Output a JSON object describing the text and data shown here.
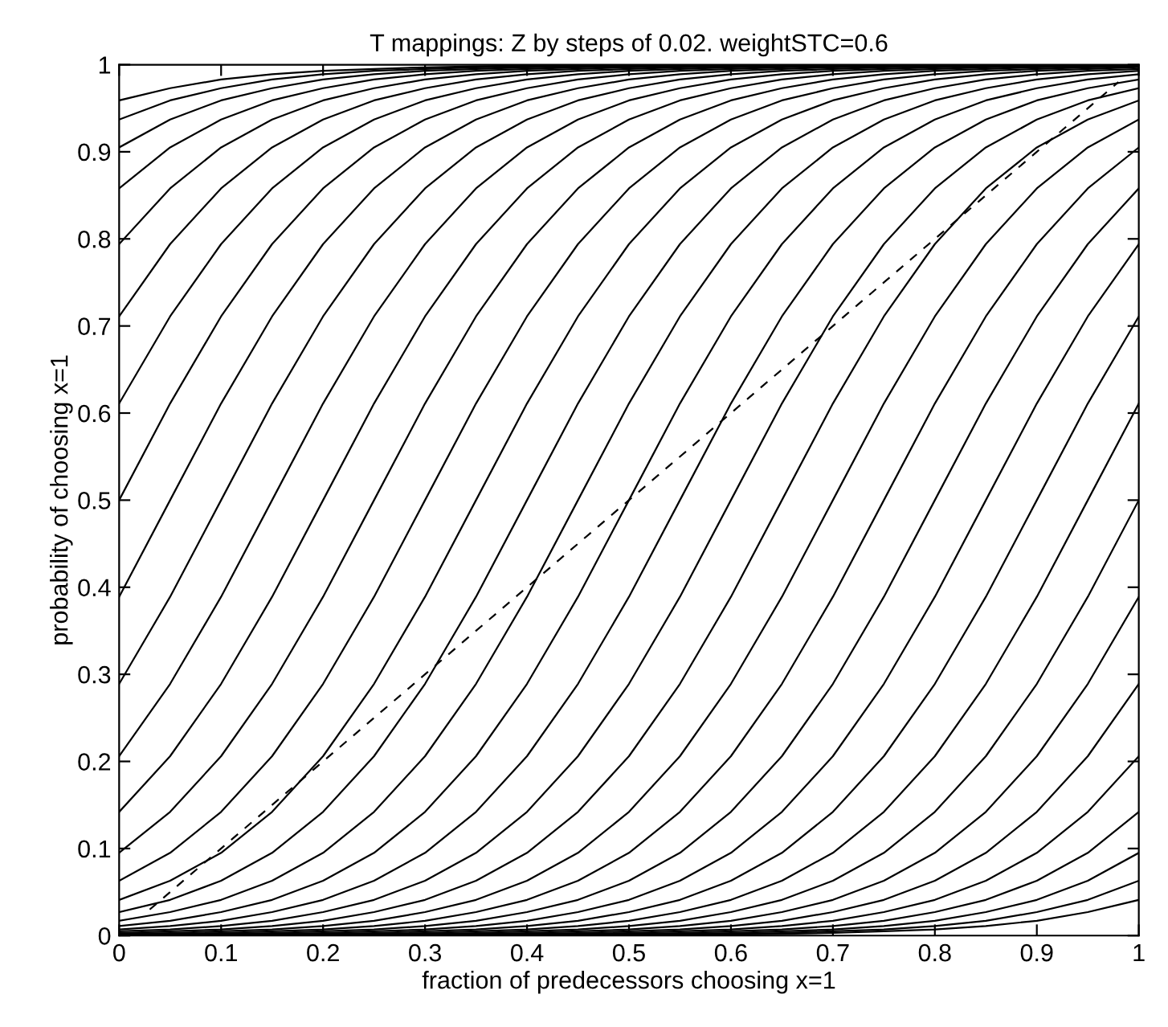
{
  "chart_data": {
    "type": "line",
    "title": "T mappings: Z by steps of 0.02. weightSTC=0.6",
    "xlabel": "fraction of predecessors choosing x=1",
    "ylabel": "probability of choosing x=1",
    "x": [
      0,
      0.05,
      0.1,
      0.15,
      0.2,
      0.25,
      0.3,
      0.35,
      0.4,
      0.45,
      0.5,
      0.55,
      0.6,
      0.65,
      0.7,
      0.75,
      0.8,
      0.85,
      0.9,
      0.95,
      1
    ],
    "xlim": [
      0,
      1
    ],
    "ylim": [
      0,
      1
    ],
    "xticks": [
      0,
      0.1,
      0.2,
      0.3,
      0.4,
      0.5,
      0.6,
      0.7,
      0.8,
      0.9,
      1
    ],
    "yticks": [
      0,
      0.1,
      0.2,
      0.3,
      0.4,
      0.5,
      0.6,
      0.7,
      0.8,
      0.9,
      1
    ],
    "grid": false,
    "marker": "none",
    "line_style": "solid",
    "series": [
      {
        "color": "#000000",
        "values": [
          0.959,
          0.973,
          0.983,
          0.989,
          0.993,
          0.995,
          0.997,
          0.998,
          0.999,
          1,
          1,
          1,
          1,
          1,
          1,
          1,
          1,
          1,
          1,
          1,
          1
        ]
      },
      {
        "color": "#000000",
        "values": [
          0.937,
          0.959,
          0.973,
          0.983,
          0.989,
          0.993,
          0.995,
          0.997,
          0.998,
          0.999,
          1,
          1,
          1,
          1,
          1,
          1,
          1,
          1,
          1,
          1,
          1
        ]
      },
      {
        "color": "#000000",
        "values": [
          0.905,
          0.937,
          0.959,
          0.973,
          0.983,
          0.989,
          0.993,
          0.995,
          0.997,
          0.998,
          0.999,
          1,
          1,
          1,
          1,
          1,
          1,
          1,
          1,
          1,
          1
        ]
      },
      {
        "color": "#000000",
        "values": [
          0.858,
          0.905,
          0.937,
          0.959,
          0.973,
          0.983,
          0.989,
          0.993,
          0.995,
          0.997,
          0.998,
          0.999,
          1,
          1,
          1,
          1,
          1,
          1,
          1,
          1,
          1
        ]
      },
      {
        "color": "#000000",
        "values": [
          0.794,
          0.858,
          0.905,
          0.937,
          0.959,
          0.973,
          0.983,
          0.989,
          0.993,
          0.995,
          0.997,
          0.998,
          0.999,
          1,
          1,
          1,
          1,
          1,
          1,
          1,
          1
        ]
      },
      {
        "color": "#000000",
        "values": [
          0.711,
          0.794,
          0.858,
          0.905,
          0.937,
          0.959,
          0.973,
          0.983,
          0.989,
          0.993,
          0.995,
          0.997,
          0.998,
          0.999,
          1,
          1,
          1,
          1,
          1,
          1,
          1
        ]
      },
      {
        "color": "#000000",
        "values": [
          0.611,
          0.711,
          0.794,
          0.858,
          0.905,
          0.937,
          0.959,
          0.973,
          0.983,
          0.989,
          0.993,
          0.995,
          0.997,
          0.998,
          0.999,
          1,
          1,
          1,
          1,
          1,
          1
        ]
      },
      {
        "color": "#000000",
        "values": [
          0.5,
          0.611,
          0.711,
          0.794,
          0.858,
          0.905,
          0.937,
          0.959,
          0.973,
          0.983,
          0.989,
          0.993,
          0.995,
          0.997,
          0.998,
          0.999,
          1,
          1,
          1,
          1,
          1
        ]
      },
      {
        "color": "#000000",
        "values": [
          0.389,
          0.5,
          0.611,
          0.711,
          0.794,
          0.858,
          0.905,
          0.937,
          0.959,
          0.973,
          0.983,
          0.989,
          0.993,
          0.995,
          0.997,
          0.998,
          0.999,
          1,
          1,
          1,
          1
        ]
      },
      {
        "color": "#000000",
        "values": [
          0.289,
          0.389,
          0.5,
          0.611,
          0.711,
          0.794,
          0.858,
          0.905,
          0.937,
          0.959,
          0.973,
          0.983,
          0.989,
          0.993,
          0.995,
          0.997,
          0.998,
          0.999,
          1,
          1,
          1
        ]
      },
      {
        "color": "#000000",
        "values": [
          0.206,
          0.289,
          0.389,
          0.5,
          0.611,
          0.711,
          0.794,
          0.858,
          0.905,
          0.937,
          0.959,
          0.973,
          0.983,
          0.989,
          0.993,
          0.995,
          0.997,
          0.998,
          0.999,
          1,
          1
        ]
      },
      {
        "color": "#000000",
        "values": [
          0.142,
          0.206,
          0.289,
          0.389,
          0.5,
          0.611,
          0.711,
          0.794,
          0.858,
          0.905,
          0.937,
          0.959,
          0.973,
          0.983,
          0.989,
          0.993,
          0.995,
          0.997,
          0.998,
          0.999,
          1
        ]
      },
      {
        "color": "#000000",
        "values": [
          0.095,
          0.142,
          0.206,
          0.289,
          0.389,
          0.5,
          0.611,
          0.711,
          0.794,
          0.858,
          0.905,
          0.937,
          0.959,
          0.973,
          0.983,
          0.989,
          0.993,
          0.995,
          0.997,
          0.998,
          0.999
        ]
      },
      {
        "color": "#000000",
        "values": [
          0.063,
          0.095,
          0.142,
          0.206,
          0.289,
          0.389,
          0.5,
          0.611,
          0.711,
          0.794,
          0.858,
          0.905,
          0.937,
          0.959,
          0.973,
          0.983,
          0.989,
          0.993,
          0.995,
          0.997,
          0.998
        ]
      },
      {
        "color": "#000000",
        "values": [
          0.041,
          0.063,
          0.095,
          0.142,
          0.206,
          0.289,
          0.389,
          0.5,
          0.611,
          0.711,
          0.794,
          0.858,
          0.905,
          0.937,
          0.959,
          0.973,
          0.983,
          0.989,
          0.993,
          0.995,
          0.997
        ]
      },
      {
        "color": "#000000",
        "values": [
          0.027,
          0.041,
          0.063,
          0.095,
          0.142,
          0.206,
          0.289,
          0.389,
          0.5,
          0.611,
          0.711,
          0.794,
          0.858,
          0.905,
          0.937,
          0.959,
          0.973,
          0.983,
          0.989,
          0.993,
          0.995
        ]
      },
      {
        "color": "#000000",
        "values": [
          0.017,
          0.027,
          0.041,
          0.063,
          0.095,
          0.142,
          0.206,
          0.289,
          0.389,
          0.5,
          0.611,
          0.711,
          0.794,
          0.858,
          0.905,
          0.937,
          0.959,
          0.973,
          0.983,
          0.989,
          0.993
        ]
      },
      {
        "color": "#000000",
        "values": [
          0.011,
          0.017,
          0.027,
          0.041,
          0.063,
          0.095,
          0.142,
          0.206,
          0.289,
          0.389,
          0.5,
          0.611,
          0.711,
          0.794,
          0.858,
          0.905,
          0.937,
          0.959,
          0.973,
          0.983,
          0.989
        ]
      },
      {
        "color": "#000000",
        "values": [
          0.007,
          0.011,
          0.017,
          0.027,
          0.041,
          0.063,
          0.095,
          0.142,
          0.206,
          0.289,
          0.389,
          0.5,
          0.611,
          0.711,
          0.794,
          0.858,
          0.905,
          0.937,
          0.959,
          0.973,
          0.983
        ]
      },
      {
        "color": "#000000",
        "values": [
          0.005,
          0.007,
          0.011,
          0.017,
          0.027,
          0.041,
          0.063,
          0.095,
          0.142,
          0.206,
          0.289,
          0.389,
          0.5,
          0.611,
          0.711,
          0.794,
          0.858,
          0.905,
          0.937,
          0.959,
          0.973
        ]
      },
      {
        "color": "#000000",
        "values": [
          0.003,
          0.005,
          0.007,
          0.011,
          0.017,
          0.027,
          0.041,
          0.063,
          0.095,
          0.142,
          0.206,
          0.289,
          0.389,
          0.5,
          0.611,
          0.711,
          0.794,
          0.858,
          0.905,
          0.937,
          0.959
        ]
      },
      {
        "color": "#000000",
        "values": [
          0.002,
          0.003,
          0.005,
          0.007,
          0.011,
          0.017,
          0.027,
          0.041,
          0.063,
          0.095,
          0.142,
          0.206,
          0.289,
          0.389,
          0.5,
          0.611,
          0.711,
          0.794,
          0.858,
          0.905,
          0.937
        ]
      },
      {
        "color": "#000000",
        "values": [
          0.001,
          0.002,
          0.003,
          0.005,
          0.007,
          0.011,
          0.017,
          0.027,
          0.041,
          0.063,
          0.095,
          0.142,
          0.206,
          0.289,
          0.389,
          0.5,
          0.611,
          0.711,
          0.794,
          0.858,
          0.905
        ]
      },
      {
        "color": "#000000",
        "values": [
          0,
          0.001,
          0.002,
          0.003,
          0.005,
          0.007,
          0.011,
          0.017,
          0.027,
          0.041,
          0.063,
          0.095,
          0.142,
          0.206,
          0.289,
          0.389,
          0.5,
          0.611,
          0.711,
          0.794,
          0.858
        ]
      },
      {
        "color": "#000000",
        "values": [
          0,
          0,
          0.001,
          0.002,
          0.003,
          0.005,
          0.007,
          0.011,
          0.017,
          0.027,
          0.041,
          0.063,
          0.095,
          0.142,
          0.206,
          0.289,
          0.389,
          0.5,
          0.611,
          0.711,
          0.794
        ]
      },
      {
        "color": "#000000",
        "values": [
          0,
          0,
          0,
          0.001,
          0.002,
          0.003,
          0.005,
          0.007,
          0.011,
          0.017,
          0.027,
          0.041,
          0.063,
          0.095,
          0.142,
          0.206,
          0.289,
          0.389,
          0.5,
          0.611,
          0.711
        ]
      },
      {
        "color": "#000000",
        "values": [
          0,
          0,
          0,
          0,
          0.001,
          0.002,
          0.003,
          0.005,
          0.007,
          0.011,
          0.017,
          0.027,
          0.041,
          0.063,
          0.095,
          0.142,
          0.206,
          0.289,
          0.389,
          0.5,
          0.611
        ]
      },
      {
        "color": "#000000",
        "values": [
          0,
          0,
          0,
          0,
          0,
          0.001,
          0.002,
          0.003,
          0.005,
          0.007,
          0.011,
          0.017,
          0.027,
          0.041,
          0.063,
          0.095,
          0.142,
          0.206,
          0.289,
          0.389,
          0.5
        ]
      },
      {
        "color": "#000000",
        "values": [
          0,
          0,
          0,
          0,
          0,
          0,
          0.001,
          0.002,
          0.003,
          0.005,
          0.007,
          0.011,
          0.017,
          0.027,
          0.041,
          0.063,
          0.095,
          0.142,
          0.206,
          0.289,
          0.389
        ]
      },
      {
        "color": "#000000",
        "values": [
          0,
          0,
          0,
          0,
          0,
          0,
          0,
          0.001,
          0.002,
          0.003,
          0.005,
          0.007,
          0.011,
          0.017,
          0.027,
          0.041,
          0.063,
          0.095,
          0.142,
          0.206,
          0.289
        ]
      },
      {
        "color": "#000000",
        "values": [
          0,
          0,
          0,
          0,
          0,
          0,
          0,
          0,
          0.001,
          0.002,
          0.003,
          0.005,
          0.007,
          0.011,
          0.017,
          0.027,
          0.041,
          0.063,
          0.095,
          0.142,
          0.206
        ]
      },
      {
        "color": "#000000",
        "values": [
          0,
          0,
          0,
          0,
          0,
          0,
          0,
          0,
          0,
          0.001,
          0.002,
          0.003,
          0.005,
          0.007,
          0.011,
          0.017,
          0.027,
          0.041,
          0.063,
          0.095,
          0.142
        ]
      },
      {
        "color": "#000000",
        "values": [
          0,
          0,
          0,
          0,
          0,
          0,
          0,
          0,
          0,
          0,
          0.001,
          0.002,
          0.003,
          0.005,
          0.007,
          0.011,
          0.017,
          0.027,
          0.041,
          0.063,
          0.095
        ]
      },
      {
        "color": "#000000",
        "values": [
          0,
          0,
          0,
          0,
          0,
          0,
          0,
          0,
          0,
          0,
          0,
          0.001,
          0.002,
          0.003,
          0.005,
          0.007,
          0.011,
          0.017,
          0.027,
          0.041,
          0.063
        ]
      },
      {
        "color": "#000000",
        "values": [
          0,
          0,
          0,
          0,
          0,
          0,
          0,
          0,
          0,
          0,
          0,
          0,
          0.001,
          0.002,
          0.003,
          0.005,
          0.007,
          0.011,
          0.017,
          0.027,
          0.041
        ]
      },
      {
        "color": "#000000",
        "line_style": "dashed",
        "x": [
          0.03,
          0.25,
          0.5,
          0.75,
          0.98
        ],
        "values": [
          0.03,
          0.25,
          0.5,
          0.75,
          0.98
        ]
      }
    ]
  }
}
